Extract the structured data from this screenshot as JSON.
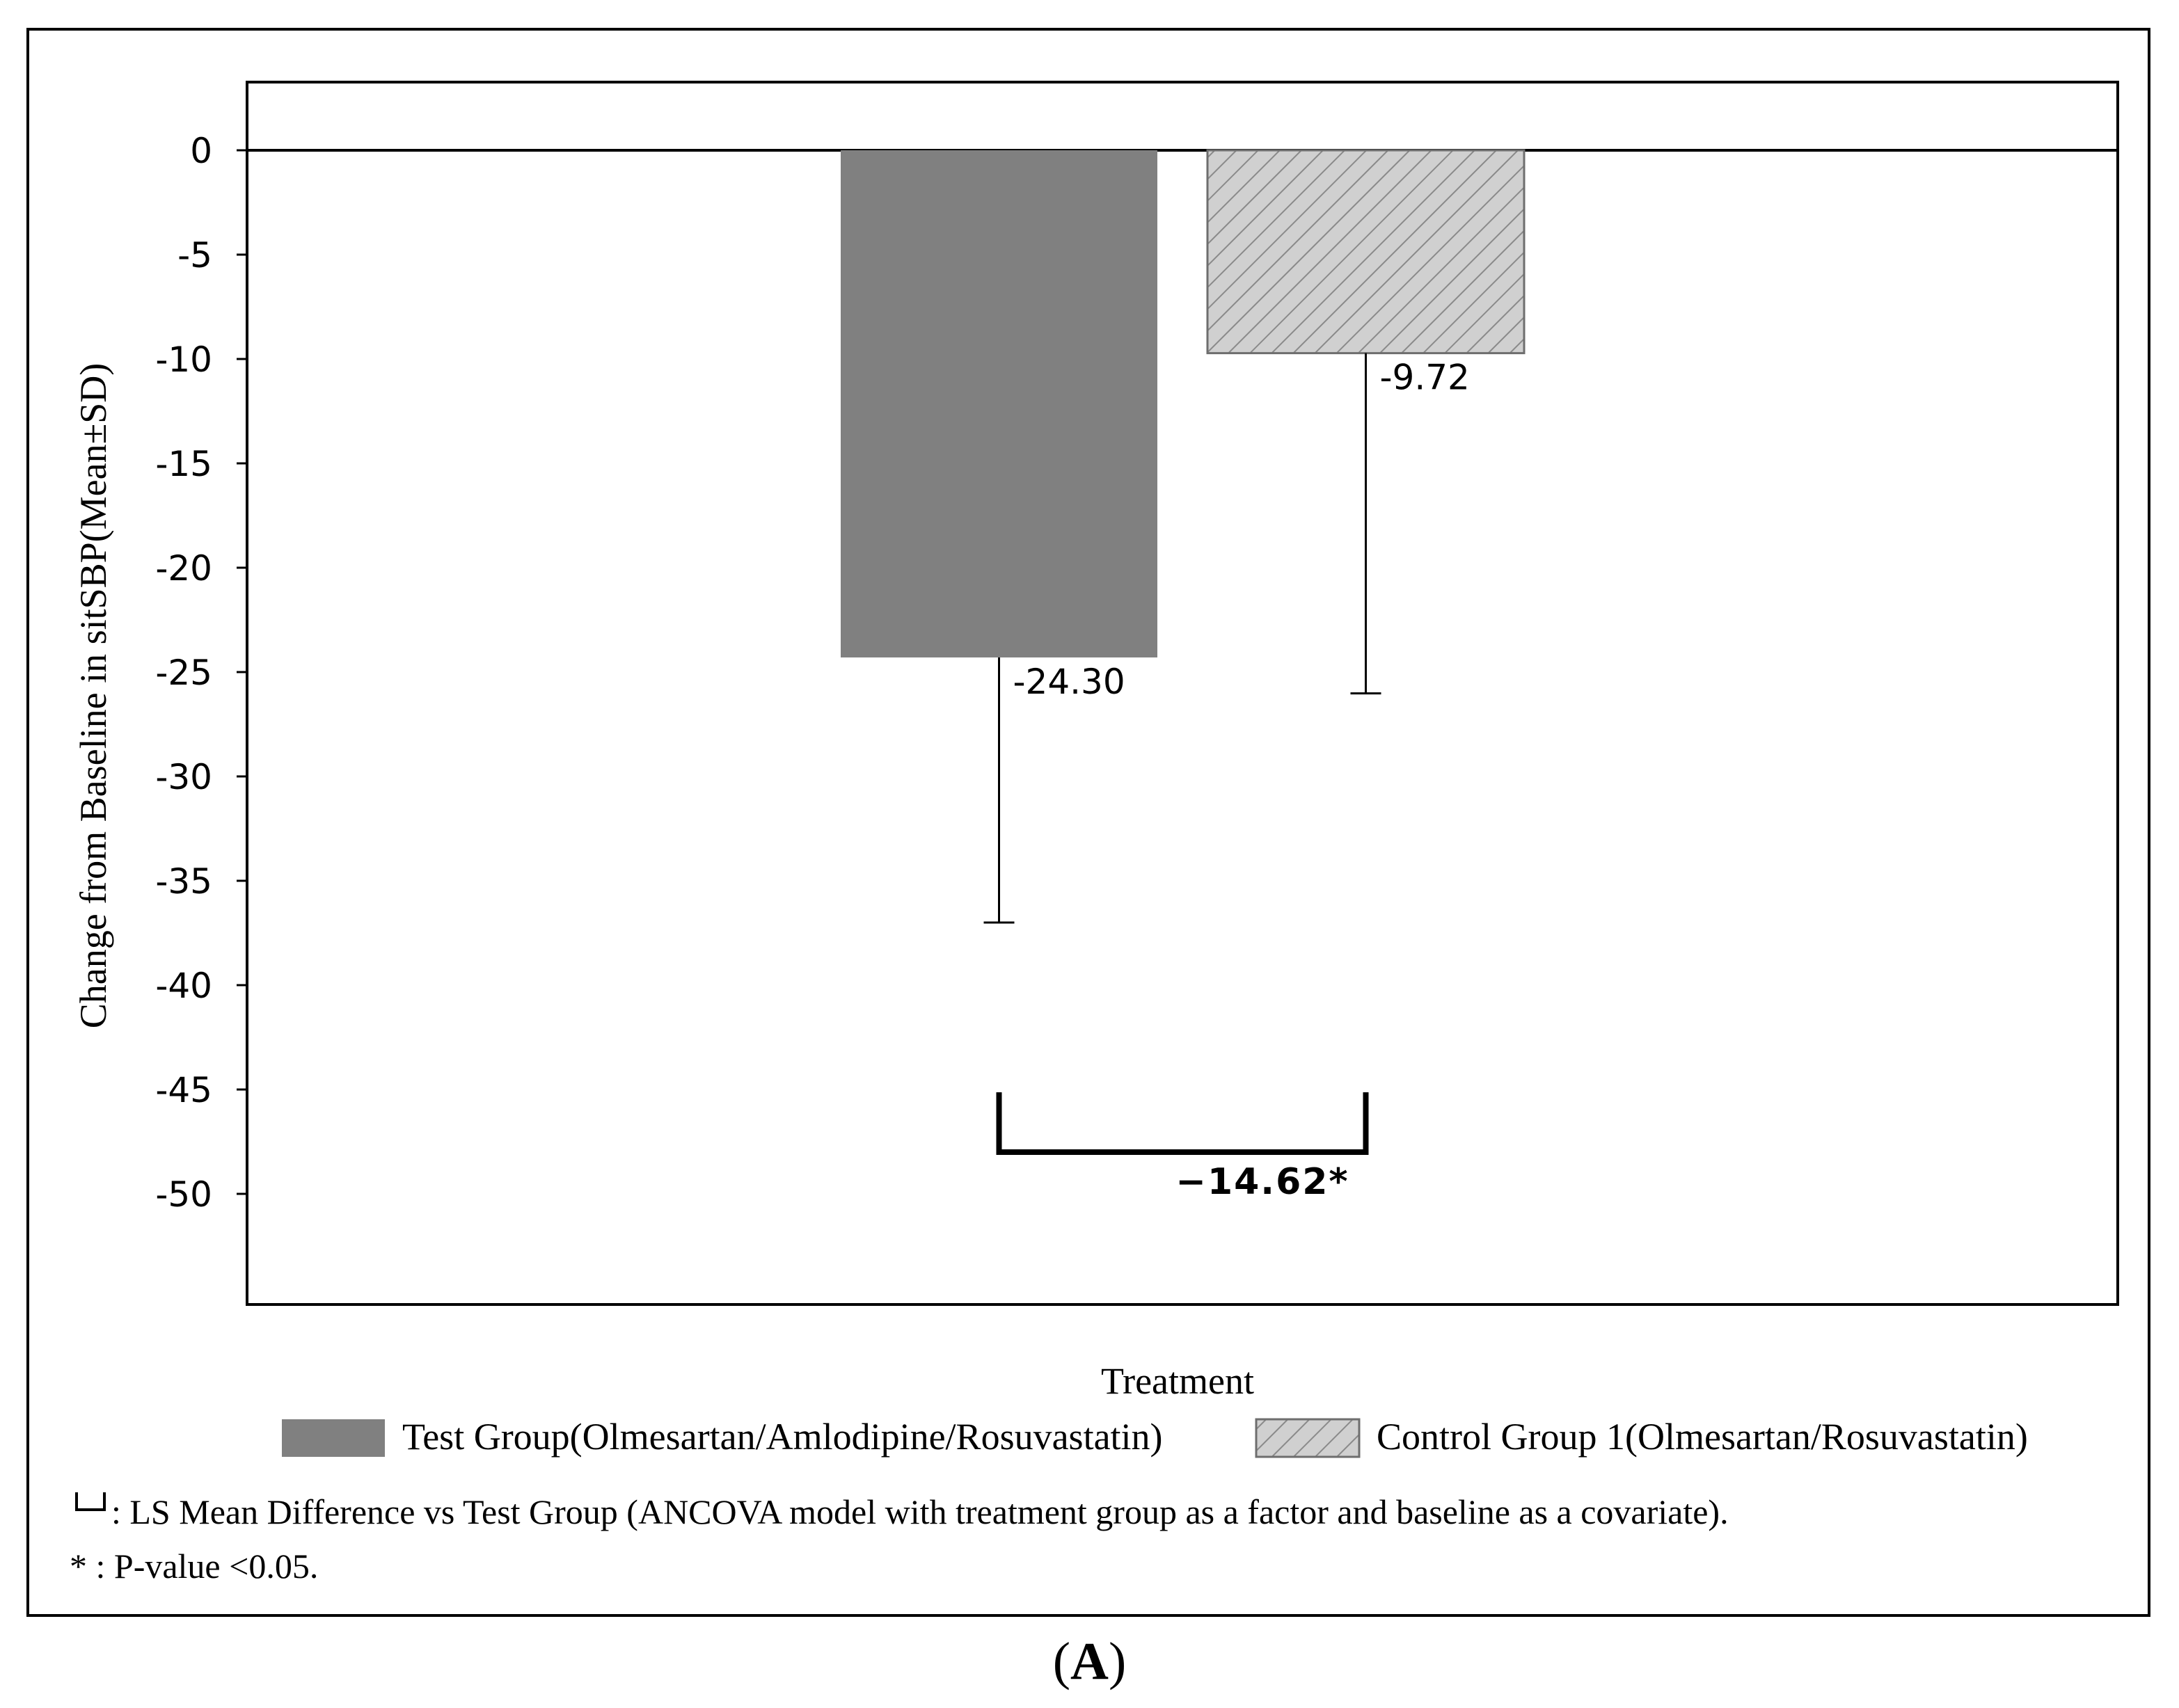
{
  "chart_data": {
    "type": "bar",
    "ylabel": "Change from Baseline in sitSBP(Mean±SD)",
    "ylim": [
      -55,
      3
    ],
    "yticks": [
      0,
      -5,
      -10,
      -15,
      -20,
      -25,
      -30,
      -35,
      -40,
      -45,
      -50
    ],
    "legend_title": "Treatment",
    "legend_position": "bottom",
    "series": [
      {
        "name": "Test Group(Olmesartan/Amlodipine/Rosuvastatin)",
        "value": -24.3,
        "label": "-24.30",
        "sd": 12.7,
        "color": "#808080",
        "pattern": "solid"
      },
      {
        "name": "Control Group 1(Olmesartan/Rosuvastatin)",
        "value": -9.72,
        "label": "-9.72",
        "sd": 16.3,
        "color": "#cccccc",
        "pattern": "hatched"
      }
    ],
    "comparison": {
      "value": -14.62,
      "label": "−14.62*",
      "level": -48.0
    },
    "footnotes": {
      "bracket_note": ": LS Mean Difference vs Test Group (ANCOVA model with treatment group as a factor and baseline as a covariate).",
      "star_note": "* : P-value <0.05."
    }
  },
  "panel_label": "A"
}
